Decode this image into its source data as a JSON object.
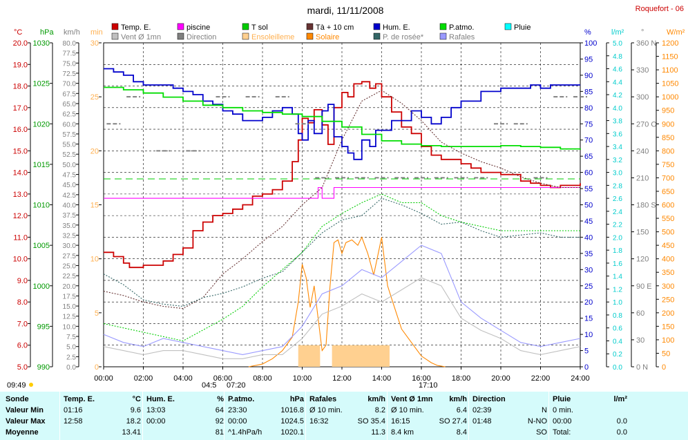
{
  "header": {
    "date": "mardi, 11/11/2008",
    "station": "Roquefort - 06",
    "sunrise_time": "09:49"
  },
  "legend": [
    {
      "label": "Temp. E.",
      "color": "#cc0000"
    },
    {
      "label": "piscine",
      "color": "#ff00ff"
    },
    {
      "label": "T sol",
      "color": "#00cc00"
    },
    {
      "label": "Tà + 10 cm",
      "color": "#663333"
    },
    {
      "label": "Hum. E.",
      "color": "#0000cc"
    },
    {
      "label": "P.atmo.",
      "color": "#00dd00"
    },
    {
      "label": "Pluie",
      "color": "#00ffff"
    },
    {
      "label": "Vent Ø 1mn",
      "color": "#c0c0c0"
    },
    {
      "label": "Direction",
      "color": "#808080"
    },
    {
      "label": "Ensoleilleme",
      "color": "#ffd090"
    },
    {
      "label": "Solaire",
      "color": "#ff8800"
    },
    {
      "label": "P. de rosée*",
      "color": "#336666"
    },
    {
      "label": "Rafales",
      "color": "#9999ff"
    }
  ],
  "axes": {
    "temp_c": {
      "title": "°C",
      "color": "#cc0000",
      "min": 5,
      "max": 20,
      "ticks": [
        "20.0",
        "19.0",
        "18.0",
        "17.0",
        "16.0",
        "15.0",
        "14.0",
        "13.0",
        "12.0",
        "11.0",
        "10.0",
        "9.0",
        "8.0",
        "7.0",
        "6.0",
        "5.0"
      ]
    },
    "pressure_hpa": {
      "title": "hPa",
      "color": "#009900",
      "min": 990,
      "max": 1030,
      "ticks": [
        "1030",
        "1025",
        "1020",
        "1015",
        "1010",
        "1005",
        "1000",
        "995",
        "990"
      ]
    },
    "wind_kmh": {
      "title": "km/h",
      "color": "#808080",
      "min": 0,
      "max": 80,
      "ticks": [
        "80.0",
        "77.5",
        "75.0",
        "72.5",
        "70.0",
        "67.5",
        "65.0",
        "62.5",
        "60.0",
        "57.5",
        "55.0",
        "52.5",
        "50.0",
        "47.5",
        "45.0",
        "42.5",
        "40.0",
        "37.5",
        "35.0",
        "32.5",
        "30.0",
        "27.5",
        "25.0",
        "22.5",
        "20.0",
        "17.5",
        "15.0",
        "12.5",
        "10.0",
        "7.5",
        "5.0",
        "2.5",
        "0.0"
      ]
    },
    "sun_min": {
      "title": "min",
      "color": "#ffb050",
      "min": 0,
      "max": 30,
      "ticks": [
        "30",
        "25",
        "20",
        "15",
        "10",
        "5",
        "0"
      ]
    },
    "humidity_pct": {
      "title": "%",
      "color": "#0000cc",
      "min": 0,
      "max": 100,
      "ticks": [
        "100",
        "95",
        "90",
        "85",
        "80",
        "75",
        "70",
        "65",
        "60",
        "55",
        "50",
        "45",
        "40",
        "35",
        "30",
        "25",
        "20",
        "15",
        "10",
        "5",
        "0"
      ]
    },
    "rain_lm2": {
      "title": "l/m²",
      "color": "#00cccc",
      "min": 0,
      "max": 5,
      "ticks": [
        "5.0",
        "4.8",
        "4.6",
        "4.4",
        "4.2",
        "4.0",
        "3.8",
        "3.6",
        "3.4",
        "3.2",
        "3.0",
        "2.8",
        "2.6",
        "2.4",
        "2.2",
        "2.0",
        "1.8",
        "1.6",
        "1.4",
        "1.2",
        "1.0",
        "0.8",
        "0.6",
        "0.4",
        "0.2",
        "0.0"
      ]
    },
    "direction_deg": {
      "title": "°",
      "color": "#808080",
      "min": 0,
      "max": 360,
      "ticks": [
        "360 N",
        "330",
        "300",
        "270 O",
        "240",
        "210",
        "180 S",
        "150",
        "120",
        "90 E",
        "60",
        "30",
        "0 N"
      ]
    },
    "solar_wm2": {
      "title": "W/m²",
      "color": "#ff8800",
      "min": 0,
      "max": 1200,
      "ticks": [
        "1200",
        "1150",
        "1100",
        "1050",
        "1000",
        "950",
        "900",
        "850",
        "800",
        "750",
        "700",
        "650",
        "600",
        "550",
        "500",
        "450",
        "400",
        "350",
        "300",
        "250",
        "200",
        "150",
        "100",
        "50",
        "0"
      ]
    },
    "time": {
      "ticks": [
        "00:00",
        "02:00",
        "04:00",
        "06:00",
        "08:00",
        "10:00",
        "12:00",
        "14:00",
        "16:00",
        "18:00",
        "20:00",
        "22:00",
        "24:00"
      ]
    }
  },
  "time_marks": {
    "sun_hours": "04:5",
    "sunrise": "07:20",
    "sunset": "17:10"
  },
  "summary": {
    "row_labels": [
      "Sonde",
      "Valeur Min",
      "Valeur Max",
      "Moyenne"
    ],
    "columns": [
      {
        "title": "Temp. E.",
        "unit": "°C",
        "rows": [
          [
            "01:16",
            "9.6"
          ],
          [
            "12:58",
            "18.2"
          ],
          [
            "",
            "13.41"
          ]
        ]
      },
      {
        "title": "Hum. E.",
        "unit": "%",
        "rows": [
          [
            "13:03",
            "64"
          ],
          [
            "00:00",
            "92"
          ],
          [
            "",
            "81"
          ]
        ]
      },
      {
        "title": "P.atmo.",
        "unit": "hPa",
        "rows": [
          [
            "23:30",
            "1016.8"
          ],
          [
            "00:00",
            "1024.5"
          ],
          [
            "^1.4hPa/h",
            "1020.1"
          ]
        ]
      },
      {
        "title": "Rafales",
        "unit": "km/h",
        "rows": [
          [
            "Ø 10 min.",
            "8.2"
          ],
          [
            "16:32",
            "SO 35.4"
          ],
          [
            "",
            "11.3"
          ]
        ]
      },
      {
        "title": "Vent Ø 1mn",
        "unit": "km/h",
        "rows": [
          [
            "Ø 10 min.",
            "6.4"
          ],
          [
            "16:15",
            "SO 27.4"
          ],
          [
            "8.4 km",
            "8.4"
          ]
        ]
      },
      {
        "title": "Direction",
        "unit": "",
        "rows": [
          [
            "02:39",
            "N"
          ],
          [
            "01:48",
            "N-NO"
          ],
          [
            "",
            "SO"
          ]
        ]
      },
      {
        "title": "Pluie",
        "unit": "l/m²",
        "rows": [
          [
            "0 min.",
            ""
          ],
          [
            "00:00",
            "0.0"
          ],
          [
            "Total:",
            "0.0"
          ]
        ]
      }
    ]
  },
  "chart_data": {
    "type": "line",
    "title": "mardi, 11/11/2008",
    "x_range": [
      "00:00",
      "24:00"
    ],
    "series": [
      {
        "name": "Temp. E.",
        "axis": "temp_c",
        "color": "#cc0000",
        "x_hours": [
          0,
          0.5,
          1,
          1.3,
          2,
          3,
          3.5,
          4,
          4.5,
          5,
          5.5,
          6,
          6.5,
          7,
          7.5,
          8,
          8.5,
          9,
          9.5,
          9.8,
          10,
          10.3,
          10.6,
          11,
          11.3,
          11.6,
          12,
          12.3,
          12.6,
          13,
          13.4,
          13.7,
          14,
          14.5,
          15,
          15.5,
          16,
          16.5,
          17,
          17.5,
          18,
          18.5,
          19,
          19.5,
          20,
          21,
          21.5,
          22,
          22.5,
          23,
          24
        ],
        "values": [
          10.3,
          10.1,
          9.8,
          9.6,
          9.7,
          9.9,
          10.2,
          10.5,
          11.3,
          11.7,
          12.0,
          12.1,
          12.3,
          12.5,
          12.9,
          13.0,
          13.2,
          13.6,
          14.5,
          15.5,
          16.5,
          16.3,
          16.9,
          16.2,
          15.3,
          17.0,
          17.7,
          17.5,
          18.1,
          18.2,
          17.9,
          18.1,
          17.5,
          16.8,
          16.1,
          15.8,
          15.2,
          14.8,
          14.6,
          14.6,
          14.4,
          14.2,
          14.0,
          14.0,
          13.9,
          13.6,
          13.5,
          13.4,
          13.3,
          13.4,
          13.5
        ]
      },
      {
        "name": "piscine",
        "axis": "temp_c",
        "color": "#ff00ff",
        "x_hours": [
          0,
          10.7,
          10.8,
          11.0,
          11.2,
          11.6,
          24
        ],
        "values": [
          12.8,
          12.8,
          13.3,
          12.8,
          12.8,
          13.3,
          13.3
        ]
      },
      {
        "name": "Hum. E.",
        "axis": "humidity_pct",
        "color": "#0000cc",
        "x_hours": [
          0,
          0.5,
          1,
          1.5,
          2,
          2.5,
          3,
          3.5,
          4,
          4.5,
          5,
          5.5,
          6,
          6.5,
          7,
          7.5,
          8,
          8.5,
          9,
          9.5,
          9.8,
          10,
          10.3,
          10.6,
          11,
          11.3,
          11.6,
          12,
          12.3,
          12.6,
          13,
          13.4,
          13.7,
          14,
          14.5,
          15,
          15.5,
          16,
          16.5,
          17,
          17.5,
          18,
          18.5,
          19,
          19.5,
          20,
          21,
          21.5,
          22,
          22.5,
          23,
          24
        ],
        "values": [
          92,
          91,
          90,
          88,
          87,
          87,
          87,
          86,
          85,
          84,
          82,
          81,
          79,
          78,
          76,
          76,
          77,
          79,
          80,
          78,
          72,
          70,
          76,
          72,
          79,
          81,
          71,
          68,
          66,
          64,
          70,
          68,
          73,
          73,
          76,
          76,
          79,
          77,
          75,
          77,
          80,
          82,
          82,
          85,
          85,
          86,
          86,
          87,
          86,
          87,
          87,
          87
        ]
      },
      {
        "name": "P.atmo.",
        "axis": "pressure_hpa",
        "color": "#00dd00",
        "x_hours": [
          0,
          1,
          2,
          3,
          4,
          5,
          6,
          7,
          8,
          9,
          10,
          11,
          12,
          13,
          14,
          15,
          16,
          17,
          18,
          19,
          20,
          21,
          22,
          23,
          24
        ],
        "values": [
          1024.5,
          1024.2,
          1023.8,
          1023.3,
          1022.8,
          1022.3,
          1022.0,
          1021.6,
          1021.4,
          1021.2,
          1020.9,
          1020.3,
          1019.6,
          1018.7,
          1017.9,
          1017.5,
          1017.3,
          1017.2,
          1017.2,
          1017.2,
          1017.3,
          1017.2,
          1017.1,
          1016.9,
          1016.8
        ]
      },
      {
        "name": "Tà + 10 cm",
        "axis": "temp_c",
        "color": "#663333",
        "x_hours": [
          0,
          1,
          2,
          3,
          4,
          5,
          6,
          7,
          8,
          9,
          10,
          11,
          12,
          13,
          14,
          15,
          16,
          17,
          18,
          19,
          20,
          21,
          22,
          23,
          24
        ],
        "values": [
          8.5,
          8.3,
          8.0,
          7.8,
          7.7,
          8.2,
          9.3,
          10.0,
          10.8,
          11.5,
          12.5,
          13.3,
          15.5,
          17.3,
          17.8,
          17.2,
          16.4,
          15.4,
          14.9,
          14.5,
          14.2,
          13.8,
          13.5,
          13.3,
          13.3
        ]
      },
      {
        "name": "P. de rosée*",
        "axis": "temp_c",
        "color": "#336666",
        "x_hours": [
          0,
          1,
          2,
          3,
          4,
          5,
          6,
          7,
          8,
          9,
          10,
          11,
          12,
          13,
          14,
          15,
          16,
          17,
          18,
          19,
          20,
          21,
          22,
          23,
          24
        ],
        "values": [
          9.3,
          8.8,
          8.1,
          7.9,
          7.8,
          8.2,
          8.4,
          8.7,
          9.1,
          9.4,
          10.3,
          11.2,
          11.8,
          12.0,
          12.8,
          12.5,
          12.1,
          11.6,
          11.7,
          11.3,
          11.0,
          11.1,
          11.2,
          11.0,
          11.0
        ]
      },
      {
        "name": "T sol",
        "axis": "temp_c",
        "color": "#00cc00",
        "x_hours": [
          0,
          2,
          4,
          6,
          7,
          8,
          9,
          10,
          11,
          12,
          13,
          14,
          15,
          16,
          17,
          18,
          19,
          20,
          22,
          24
        ],
        "values": [
          7.0,
          6.6,
          6.2,
          7.2,
          7.8,
          8.7,
          9.5,
          10.3,
          11.5,
          12.1,
          12.6,
          13.0,
          12.6,
          12.6,
          12.0,
          11.7,
          11.5,
          11.3,
          11.3,
          11.3
        ]
      },
      {
        "name": "Solaire",
        "axis": "solar_wm2",
        "color": "#ff8800",
        "x_hours": [
          7.3,
          8,
          8.5,
          9,
          9.5,
          9.8,
          10,
          10.2,
          10.4,
          10.6,
          10.8,
          11,
          11.2,
          11.4,
          11.6,
          11.8,
          12,
          12.2,
          12.5,
          12.8,
          13,
          13.3,
          13.6,
          14,
          14.3,
          14.6,
          15,
          15.5,
          16,
          16.5,
          16.8,
          17.2
        ],
        "values": [
          0,
          10,
          30,
          60,
          110,
          240,
          380,
          330,
          220,
          300,
          180,
          60,
          80,
          300,
          460,
          470,
          420,
          460,
          470,
          450,
          480,
          420,
          340,
          480,
          300,
          230,
          140,
          90,
          40,
          15,
          5,
          0
        ]
      },
      {
        "name": "Rafales",
        "axis": "wind_kmh",
        "color": "#9999ff",
        "x_hours": [
          0,
          1,
          2,
          3,
          4,
          5,
          6,
          7,
          8,
          9,
          10,
          11,
          12,
          13,
          14,
          15,
          16,
          17,
          18,
          19,
          20,
          21,
          22,
          23,
          24
        ],
        "values": [
          8,
          6,
          5,
          7,
          6,
          5,
          4,
          3,
          4,
          5,
          10,
          18,
          20,
          24,
          22,
          26,
          30,
          28,
          16,
          12,
          9,
          6,
          5,
          6,
          7
        ]
      },
      {
        "name": "Vent Ø 1mn",
        "axis": "wind_kmh",
        "color": "#c0c0c0",
        "x_hours": [
          0,
          1,
          2,
          3,
          4,
          5,
          6,
          7,
          8,
          9,
          10,
          11,
          12,
          13,
          14,
          15,
          16,
          17,
          18,
          19,
          20,
          21,
          22,
          23,
          24
        ],
        "values": [
          5,
          4,
          3,
          4,
          4,
          3,
          2,
          2,
          3,
          3,
          7,
          13,
          15,
          18,
          16,
          19,
          22,
          20,
          12,
          9,
          7,
          4,
          3,
          4,
          5
        ]
      },
      {
        "name": "Direction",
        "axis": "direction_deg",
        "color": "#808080",
        "x_hours": [
          0.5,
          1.5,
          3,
          4.5,
          6,
          7.5,
          9,
          10,
          11,
          12,
          13,
          14,
          15,
          16,
          17,
          18,
          19,
          20,
          21,
          22,
          23,
          24
        ],
        "values": [
          270,
          300,
          240,
          240,
          300,
          300,
          300,
          270,
          210,
          210,
          210,
          210,
          210,
          210,
          210,
          210,
          210,
          270,
          270,
          210,
          300,
          300
        ]
      }
    ],
    "sunshine_bars": [
      {
        "start_hour": 9.8,
        "end_hour": 10.9,
        "minutes": 2
      },
      {
        "start_hour": 11.5,
        "end_hour": 14.4,
        "minutes": 2
      }
    ],
    "reference_lines": [
      {
        "axis": "temp_c",
        "value": 13.7,
        "color": "#00cc00",
        "style": "dashed"
      }
    ]
  }
}
